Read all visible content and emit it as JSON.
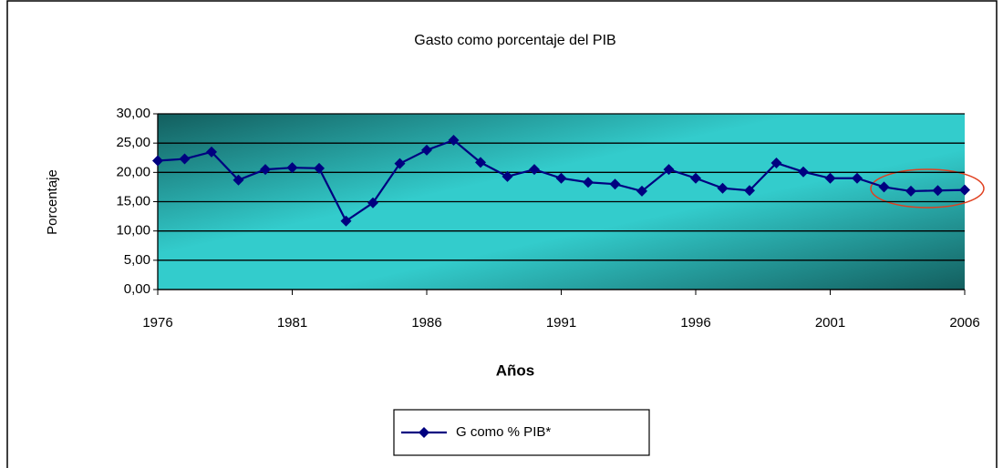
{
  "chart_data": {
    "type": "line",
    "title": "Gasto como porcentaje del PIB",
    "x_label": "Años",
    "y_label": "Porcentaje",
    "x": [
      1976,
      1977,
      1978,
      1979,
      1980,
      1981,
      1982,
      1983,
      1984,
      1985,
      1986,
      1987,
      1988,
      1989,
      1990,
      1991,
      1992,
      1993,
      1994,
      1995,
      1996,
      1997,
      1998,
      1999,
      2000,
      2001,
      2002,
      2003,
      2004,
      2005,
      2006
    ],
    "series": [
      {
        "name": "G como % PIB*",
        "color": "#000080",
        "values": [
          22.0,
          22.3,
          23.5,
          18.7,
          20.5,
          20.8,
          20.7,
          11.7,
          14.8,
          21.5,
          23.8,
          25.5,
          21.7,
          19.3,
          20.5,
          19.0,
          18.3,
          18.0,
          16.8,
          20.5,
          19.0,
          17.3,
          16.9,
          21.6,
          20.1,
          19.0,
          19.0,
          17.5,
          16.8,
          16.9,
          17.0
        ]
      }
    ],
    "xlim": [
      1976,
      2006
    ],
    "xticks": [
      1976,
      1981,
      1986,
      1991,
      1996,
      2001,
      2006
    ],
    "ylim": [
      0,
      30
    ],
    "yticks": [
      {
        "value": 0,
        "label": "0,00"
      },
      {
        "value": 5,
        "label": "5,00"
      },
      {
        "value": 10,
        "label": "10,00"
      },
      {
        "value": 15,
        "label": "15,00"
      },
      {
        "value": 20,
        "label": "20,00"
      },
      {
        "value": 25,
        "label": "25,00"
      },
      {
        "value": 30,
        "label": "30,00"
      }
    ],
    "grid": true,
    "legend": "bottom"
  }
}
